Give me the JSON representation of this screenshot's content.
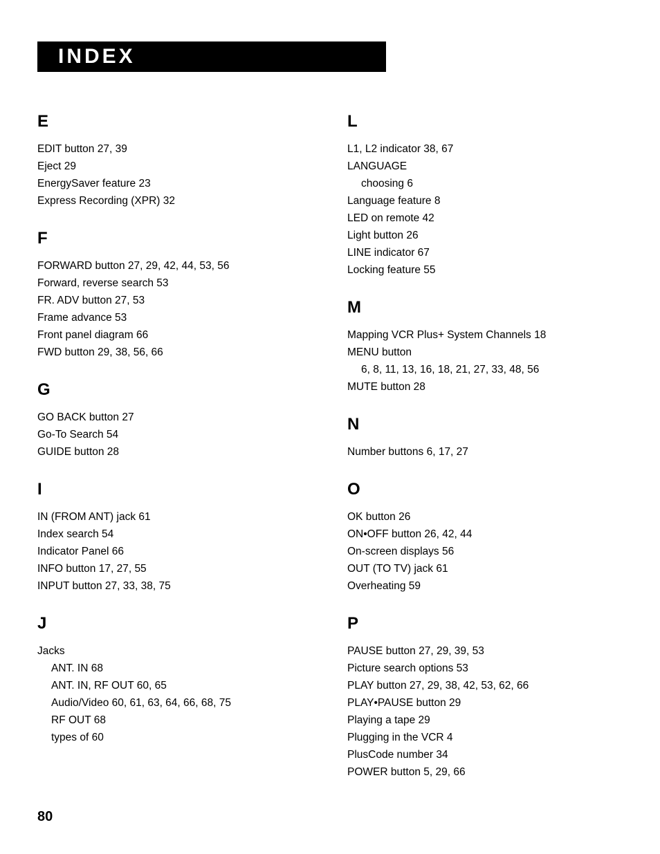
{
  "banner_title": "INDEX",
  "page_number": "80",
  "columns": [
    {
      "sections": [
        {
          "letter": "E",
          "entries": [
            {
              "text": "EDIT button  27,  39",
              "sub": false
            },
            {
              "text": "Eject  29",
              "sub": false
            },
            {
              "text": "EnergySaver feature  23",
              "sub": false
            },
            {
              "text": "Express Recording (XPR)  32",
              "sub": false
            }
          ]
        },
        {
          "letter": "F",
          "entries": [
            {
              "text": "FORWARD button  27,  29,  42,  44,  53,  56",
              "sub": false
            },
            {
              "text": "Forward, reverse search  53",
              "sub": false
            },
            {
              "text": "FR. ADV button  27,  53",
              "sub": false
            },
            {
              "text": "Frame advance  53",
              "sub": false
            },
            {
              "text": "Front panel diagram  66",
              "sub": false
            },
            {
              "text": "FWD button  29,  38,  56,  66",
              "sub": false
            }
          ]
        },
        {
          "letter": "G",
          "entries": [
            {
              "text": "GO BACK button  27",
              "sub": false
            },
            {
              "text": "Go-To Search  54",
              "sub": false
            },
            {
              "text": "GUIDE button  28",
              "sub": false
            }
          ]
        },
        {
          "letter": "I",
          "entries": [
            {
              "text": "IN (FROM ANT) jack  61",
              "sub": false
            },
            {
              "text": "Index search  54",
              "sub": false
            },
            {
              "text": "Indicator Panel  66",
              "sub": false
            },
            {
              "text": "INFO button  17,  27,  55",
              "sub": false
            },
            {
              "text": "INPUT button  27,  33,  38,  75",
              "sub": false
            }
          ]
        },
        {
          "letter": "J",
          "entries": [
            {
              "text": "Jacks",
              "sub": false
            },
            {
              "text": "ANT. IN  68",
              "sub": true
            },
            {
              "text": "ANT. IN, RF OUT  60,  65",
              "sub": true
            },
            {
              "text": "Audio/Video  60,  61,  63,  64,  66,  68,  75",
              "sub": true
            },
            {
              "text": "RF OUT  68",
              "sub": true
            },
            {
              "text": "types of  60",
              "sub": true
            }
          ]
        }
      ]
    },
    {
      "sections": [
        {
          "letter": "L",
          "entries": [
            {
              "text": "L1, L2 indicator  38,  67",
              "sub": false
            },
            {
              "text": "LANGUAGE",
              "sub": false
            },
            {
              "text": "choosing  6",
              "sub": true
            },
            {
              "text": "Language feature  8",
              "sub": false
            },
            {
              "text": "LED on remote  42",
              "sub": false
            },
            {
              "text": "Light button  26",
              "sub": false
            },
            {
              "text": "LINE indicator  67",
              "sub": false
            },
            {
              "text": "Locking feature  55",
              "sub": false
            }
          ]
        },
        {
          "letter": "M",
          "entries": [
            {
              "text": "Mapping VCR Plus+ System Channels  18",
              "sub": false
            },
            {
              "text": "MENU button",
              "sub": false
            },
            {
              "text": "6,  8,  11,  13,  16,  18,  21,  27,  33,  48,  56",
              "sub": true
            },
            {
              "text": "MUTE button  28",
              "sub": false
            }
          ]
        },
        {
          "letter": "N",
          "entries": [
            {
              "text": "Number buttons  6,  17,  27",
              "sub": false
            }
          ]
        },
        {
          "letter": "O",
          "entries": [
            {
              "text": "OK button  26",
              "sub": false
            },
            {
              "text": "ON•OFF button  26,  42,  44",
              "sub": false
            },
            {
              "text": "On-screen displays  56",
              "sub": false
            },
            {
              "text": "OUT (TO TV) jack  61",
              "sub": false
            },
            {
              "text": "Overheating  59",
              "sub": false
            }
          ]
        },
        {
          "letter": "P",
          "entries": [
            {
              "text": "PAUSE button  27,  29,  39,  53",
              "sub": false
            },
            {
              "text": "Picture search options  53",
              "sub": false
            },
            {
              "text": "PLAY button  27,  29,  38,  42,  53,  62,  66",
              "sub": false
            },
            {
              "text": "PLAY•PAUSE button  29",
              "sub": false
            },
            {
              "text": "Playing a tape  29",
              "sub": false
            },
            {
              "text": "Plugging in the VCR  4",
              "sub": false
            },
            {
              "text": "PlusCode number  34",
              "sub": false
            },
            {
              "text": "POWER button  5,  29,  66",
              "sub": false
            }
          ]
        }
      ]
    }
  ]
}
